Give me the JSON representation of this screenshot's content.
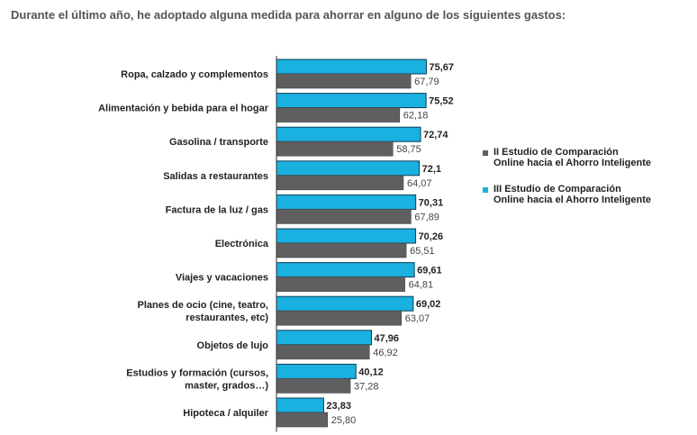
{
  "chart_data": {
    "type": "bar",
    "orientation": "horizontal",
    "title": "Durante el último año, he adoptado alguna medida para ahorrar en alguno de los siguientes gastos:",
    "categories": [
      "Ropa, calzado y complementos",
      "Alimentación y bebida para el hogar",
      "Gasolina / transporte",
      "Salidas a restaurantes",
      "Factura de la luz / gas",
      "Electrónica",
      "Viajes y vacaciones",
      "Planes de ocio (cine, teatro, restaurantes, etc)",
      "Objetos de lujo",
      "Estudios y formación (cursos, master, grados…)",
      "Hipoteca / alquiler"
    ],
    "category_lines": [
      [
        "Ropa, calzado y complementos"
      ],
      [
        "Alimentación y bebida para el hogar"
      ],
      [
        "Gasolina / transporte"
      ],
      [
        "Salidas a restaurantes"
      ],
      [
        "Factura de la luz / gas"
      ],
      [
        "Electrónica"
      ],
      [
        "Viajes y vacaciones"
      ],
      [
        "Planes de ocio (cine, teatro,",
        "restaurantes, etc)"
      ],
      [
        "Objetos de lujo"
      ],
      [
        "Estudios y formación (cursos,",
        "master, grados…)"
      ],
      [
        "Hipoteca / alquiler"
      ]
    ],
    "series": [
      {
        "name": "III Estudio de Comparación Online hacia el Ahorro Inteligente",
        "legend_lines": [
          "III Estudio de Comparación",
          "Online hacia el Ahorro Inteligente"
        ],
        "color": "#1ab0e0",
        "values": [
          75.67,
          75.52,
          72.74,
          72.1,
          70.31,
          70.26,
          69.61,
          69.02,
          47.96,
          40.12,
          23.83
        ],
        "labels": [
          "75,67",
          "75,52",
          "72,74",
          "72,1",
          "70,31",
          "70,26",
          "69,61",
          "69,02",
          "47,96",
          "40,12",
          "23,83"
        ]
      },
      {
        "name": "II Estudio de Comparación Online hacia el Ahorro Inteligente",
        "legend_lines": [
          "II Estudio de Comparación",
          "Online hacia el Ahorro Inteligente"
        ],
        "color": "#5f5f5f",
        "values": [
          67.79,
          62.18,
          58.75,
          64.07,
          67.89,
          65.51,
          64.81,
          63.07,
          46.92,
          37.28,
          25.8
        ],
        "labels": [
          "67,79",
          "62,18",
          "58,75",
          "64,07",
          "67,89",
          "65,51",
          "64,81",
          "63,07",
          "46,92",
          "37,28",
          "25,80"
        ]
      }
    ],
    "xlim": [
      0,
      100
    ],
    "grid": false,
    "legend_position": "right"
  }
}
